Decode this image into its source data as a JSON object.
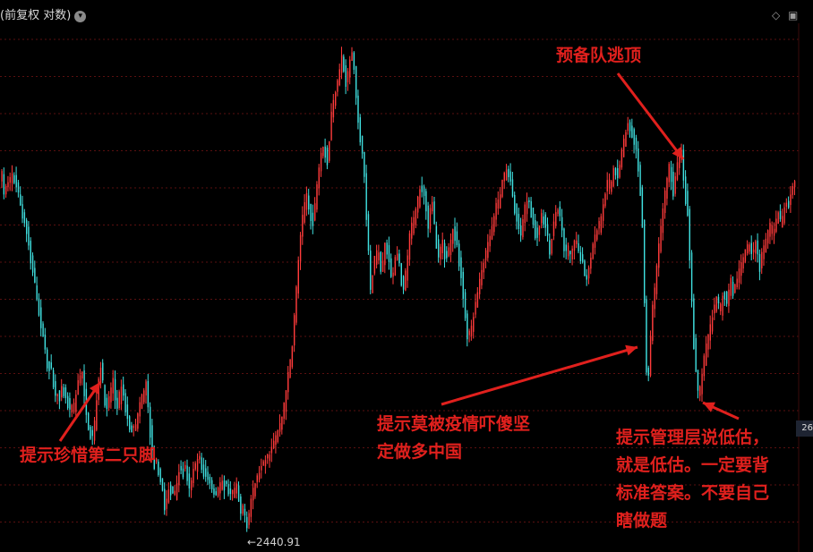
{
  "header": {
    "title": "(前复权 对数)",
    "dropdown_icon": "chevron-down-icon",
    "right_icons": [
      "diamond-icon",
      "window-icon"
    ]
  },
  "annotations": [
    {
      "id": "a1",
      "text": "提示珍惜第二只脚"
    },
    {
      "id": "a2",
      "lines": [
        "提示莫被疫情吓傻坚",
        "定做多中国"
      ]
    },
    {
      "id": "a3",
      "text": "预备队逃顶"
    },
    {
      "id": "a4",
      "lines": [
        "提示管理层说低估，",
        "就是低估。一定要背",
        "标准答案。不要自己",
        "瞎做题"
      ]
    }
  ],
  "price_tag": "26",
  "colors": {
    "up": "#ff3b3b",
    "down": "#40e0e0",
    "annotation": "#e0201d",
    "grid": "#5a1010",
    "background": "#000000"
  },
  "chart_data": {
    "type": "candlestick",
    "scale": "log",
    "min_label": "←2440.91",
    "min_value": 2440.91,
    "close_path": [
      [
        0,
        0.76
      ],
      [
        5,
        0.7
      ],
      [
        10,
        0.72
      ],
      [
        15,
        0.74
      ],
      [
        22,
        0.68
      ],
      [
        30,
        0.62
      ],
      [
        38,
        0.52
      ],
      [
        45,
        0.44
      ],
      [
        52,
        0.36
      ],
      [
        58,
        0.33
      ],
      [
        62,
        0.28
      ],
      [
        70,
        0.3
      ],
      [
        76,
        0.27
      ],
      [
        82,
        0.26
      ],
      [
        88,
        0.32
      ],
      [
        92,
        0.33
      ],
      [
        98,
        0.22
      ],
      [
        104,
        0.2
      ],
      [
        108,
        0.28
      ],
      [
        112,
        0.35
      ],
      [
        118,
        0.26
      ],
      [
        122,
        0.28
      ],
      [
        126,
        0.32
      ],
      [
        130,
        0.26
      ],
      [
        136,
        0.31
      ],
      [
        142,
        0.24
      ],
      [
        148,
        0.21
      ],
      [
        152,
        0.23
      ],
      [
        158,
        0.28
      ],
      [
        163,
        0.31
      ],
      [
        168,
        0.21
      ],
      [
        172,
        0.15
      ],
      [
        176,
        0.14
      ],
      [
        180,
        0.11
      ],
      [
        184,
        0.06
      ],
      [
        190,
        0.1
      ],
      [
        194,
        0.08
      ],
      [
        200,
        0.13
      ],
      [
        206,
        0.14
      ],
      [
        212,
        0.1
      ],
      [
        216,
        0.13
      ],
      [
        222,
        0.16
      ],
      [
        228,
        0.13
      ],
      [
        232,
        0.12
      ],
      [
        236,
        0.1
      ],
      [
        240,
        0.08
      ],
      [
        246,
        0.11
      ],
      [
        252,
        0.1
      ],
      [
        258,
        0.08
      ],
      [
        264,
        0.1
      ],
      [
        268,
        0.06
      ],
      [
        272,
        0.05
      ],
      [
        276,
        0.02
      ],
      [
        280,
        0.07
      ],
      [
        284,
        0.1
      ],
      [
        290,
        0.13
      ],
      [
        296,
        0.15
      ],
      [
        302,
        0.17
      ],
      [
        308,
        0.2
      ],
      [
        314,
        0.23
      ],
      [
        318,
        0.28
      ],
      [
        322,
        0.33
      ],
      [
        326,
        0.38
      ],
      [
        330,
        0.48
      ],
      [
        334,
        0.58
      ],
      [
        338,
        0.65
      ],
      [
        342,
        0.7
      ],
      [
        346,
        0.66
      ],
      [
        350,
        0.64
      ],
      [
        354,
        0.72
      ],
      [
        358,
        0.78
      ],
      [
        362,
        0.8
      ],
      [
        366,
        0.76
      ],
      [
        370,
        0.86
      ],
      [
        374,
        0.9
      ],
      [
        378,
        0.94
      ],
      [
        382,
        0.98
      ],
      [
        386,
        0.92
      ],
      [
        390,
        0.96
      ],
      [
        394,
        0.99
      ],
      [
        398,
        0.88
      ],
      [
        402,
        0.82
      ],
      [
        406,
        0.76
      ],
      [
        410,
        0.62
      ],
      [
        414,
        0.5
      ],
      [
        418,
        0.56
      ],
      [
        422,
        0.59
      ],
      [
        426,
        0.54
      ],
      [
        430,
        0.6
      ],
      [
        434,
        0.57
      ],
      [
        438,
        0.52
      ],
      [
        442,
        0.58
      ],
      [
        446,
        0.55
      ],
      [
        450,
        0.5
      ],
      [
        454,
        0.55
      ],
      [
        458,
        0.62
      ],
      [
        462,
        0.65
      ],
      [
        466,
        0.68
      ],
      [
        470,
        0.72
      ],
      [
        474,
        0.7
      ],
      [
        478,
        0.64
      ],
      [
        482,
        0.69
      ],
      [
        486,
        0.61
      ],
      [
        490,
        0.57
      ],
      [
        494,
        0.6
      ],
      [
        498,
        0.56
      ],
      [
        502,
        0.59
      ],
      [
        506,
        0.63
      ],
      [
        510,
        0.6
      ],
      [
        514,
        0.55
      ],
      [
        518,
        0.48
      ],
      [
        522,
        0.4
      ],
      [
        526,
        0.42
      ],
      [
        530,
        0.46
      ],
      [
        534,
        0.5
      ],
      [
        538,
        0.54
      ],
      [
        542,
        0.57
      ],
      [
        546,
        0.6
      ],
      [
        550,
        0.63
      ],
      [
        554,
        0.67
      ],
      [
        558,
        0.69
      ],
      [
        562,
        0.73
      ],
      [
        566,
        0.75
      ],
      [
        570,
        0.72
      ],
      [
        574,
        0.68
      ],
      [
        578,
        0.64
      ],
      [
        582,
        0.62
      ],
      [
        586,
        0.67
      ],
      [
        590,
        0.69
      ],
      [
        594,
        0.66
      ],
      [
        598,
        0.61
      ],
      [
        602,
        0.63
      ],
      [
        606,
        0.66
      ],
      [
        610,
        0.62
      ],
      [
        614,
        0.58
      ],
      [
        618,
        0.63
      ],
      [
        622,
        0.67
      ],
      [
        626,
        0.64
      ],
      [
        630,
        0.59
      ],
      [
        634,
        0.58
      ],
      [
        638,
        0.57
      ],
      [
        642,
        0.6
      ],
      [
        646,
        0.58
      ],
      [
        650,
        0.56
      ],
      [
        654,
        0.52
      ],
      [
        658,
        0.55
      ],
      [
        662,
        0.59
      ],
      [
        666,
        0.62
      ],
      [
        670,
        0.64
      ],
      [
        674,
        0.68
      ],
      [
        678,
        0.72
      ],
      [
        682,
        0.71
      ],
      [
        686,
        0.76
      ],
      [
        690,
        0.73
      ],
      [
        694,
        0.78
      ],
      [
        698,
        0.82
      ],
      [
        702,
        0.84
      ],
      [
        706,
        0.82
      ],
      [
        710,
        0.79
      ],
      [
        714,
        0.74
      ],
      [
        718,
        0.62
      ],
      [
        721,
        0.35
      ],
      [
        724,
        0.32
      ],
      [
        728,
        0.45
      ],
      [
        732,
        0.52
      ],
      [
        736,
        0.6
      ],
      [
        740,
        0.66
      ],
      [
        744,
        0.72
      ],
      [
        748,
        0.76
      ],
      [
        752,
        0.7
      ],
      [
        756,
        0.75
      ],
      [
        760,
        0.8
      ],
      [
        764,
        0.72
      ],
      [
        768,
        0.66
      ],
      [
        772,
        0.5
      ],
      [
        776,
        0.35
      ],
      [
        780,
        0.28
      ],
      [
        784,
        0.33
      ],
      [
        788,
        0.38
      ],
      [
        792,
        0.42
      ],
      [
        796,
        0.45
      ],
      [
        800,
        0.48
      ],
      [
        804,
        0.46
      ],
      [
        808,
        0.5
      ],
      [
        812,
        0.48
      ],
      [
        816,
        0.52
      ],
      [
        820,
        0.5
      ],
      [
        824,
        0.53
      ],
      [
        828,
        0.56
      ],
      [
        832,
        0.58
      ],
      [
        836,
        0.6
      ],
      [
        840,
        0.57
      ],
      [
        844,
        0.6
      ],
      [
        848,
        0.55
      ],
      [
        852,
        0.58
      ],
      [
        856,
        0.61
      ],
      [
        860,
        0.63
      ],
      [
        864,
        0.62
      ],
      [
        868,
        0.66
      ],
      [
        872,
        0.64
      ],
      [
        876,
        0.67
      ],
      [
        880,
        0.68
      ],
      [
        884,
        0.7
      ],
      [
        888,
        0.72
      ]
    ]
  }
}
